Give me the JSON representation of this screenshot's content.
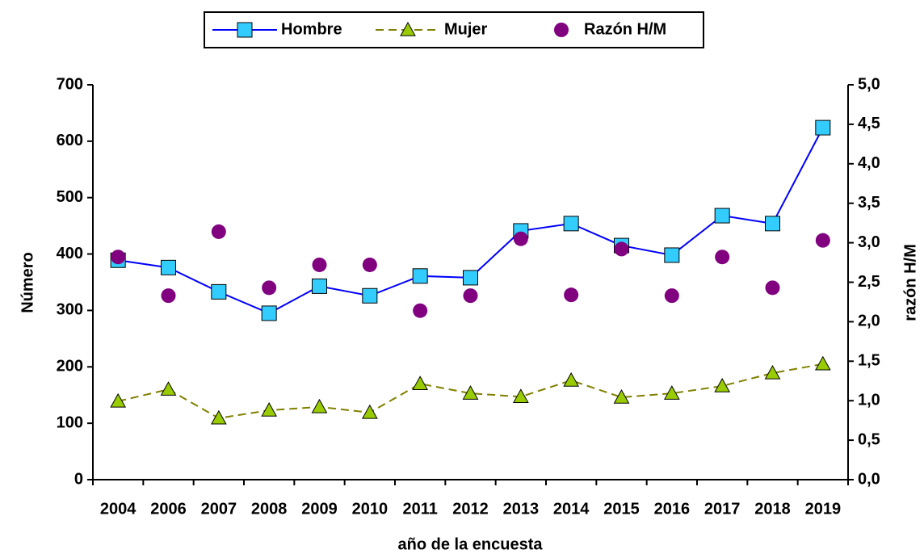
{
  "chart_data": {
    "type": "line",
    "categories": [
      "2004",
      "2006",
      "2007",
      "2008",
      "2009",
      "2010",
      "2011",
      "2012",
      "2013",
      "2014",
      "2015",
      "2016",
      "2017",
      "2018",
      "2019"
    ],
    "series": [
      {
        "name": "Hombre",
        "color": "#0000ff",
        "marker_color": "#33ccff",
        "marker": "square",
        "line": "solid",
        "values": [
          389,
          376,
          333,
          295,
          343,
          326,
          361,
          358,
          441,
          454,
          415,
          398,
          468,
          454,
          624
        ]
      },
      {
        "name": "Mujer",
        "color": "#808000",
        "marker_color": "#99cc00",
        "marker": "triangle",
        "line": "dashed",
        "values": [
          139,
          160,
          109,
          123,
          129,
          119,
          170,
          153,
          147,
          176,
          146,
          153,
          166,
          189,
          205
        ]
      },
      {
        "name": "Razón H/M",
        "color": "#800080",
        "marker": "circle",
        "line": "none",
        "axis": "y2",
        "values": [
          2.82,
          2.33,
          3.14,
          2.43,
          2.72,
          2.72,
          2.14,
          2.33,
          3.05,
          2.34,
          2.92,
          2.33,
          2.82,
          2.43,
          3.03
        ]
      }
    ],
    "x_label": "año de la encuesta",
    "y_label": "Número",
    "y2_label": "razón H/M",
    "ylim": [
      0,
      700
    ],
    "yticks": [
      0,
      100,
      200,
      300,
      400,
      500,
      600,
      700
    ],
    "y2lim": [
      0,
      5
    ],
    "y2ticks": [
      {
        "value": 0,
        "label": "0,0"
      },
      {
        "value": 0.5,
        "label": "0,5"
      },
      {
        "value": 1,
        "label": "1,0"
      },
      {
        "value": 1.5,
        "label": "1,5"
      },
      {
        "value": 2,
        "label": "2,0"
      },
      {
        "value": 2.5,
        "label": "2,5"
      },
      {
        "value": 3,
        "label": "3,0"
      },
      {
        "value": 3.5,
        "label": "3,5"
      },
      {
        "value": 4,
        "label": "4,0"
      },
      {
        "value": 4.5,
        "label": "4,5"
      },
      {
        "value": 5,
        "label": "5,0"
      }
    ],
    "legend": "top"
  }
}
